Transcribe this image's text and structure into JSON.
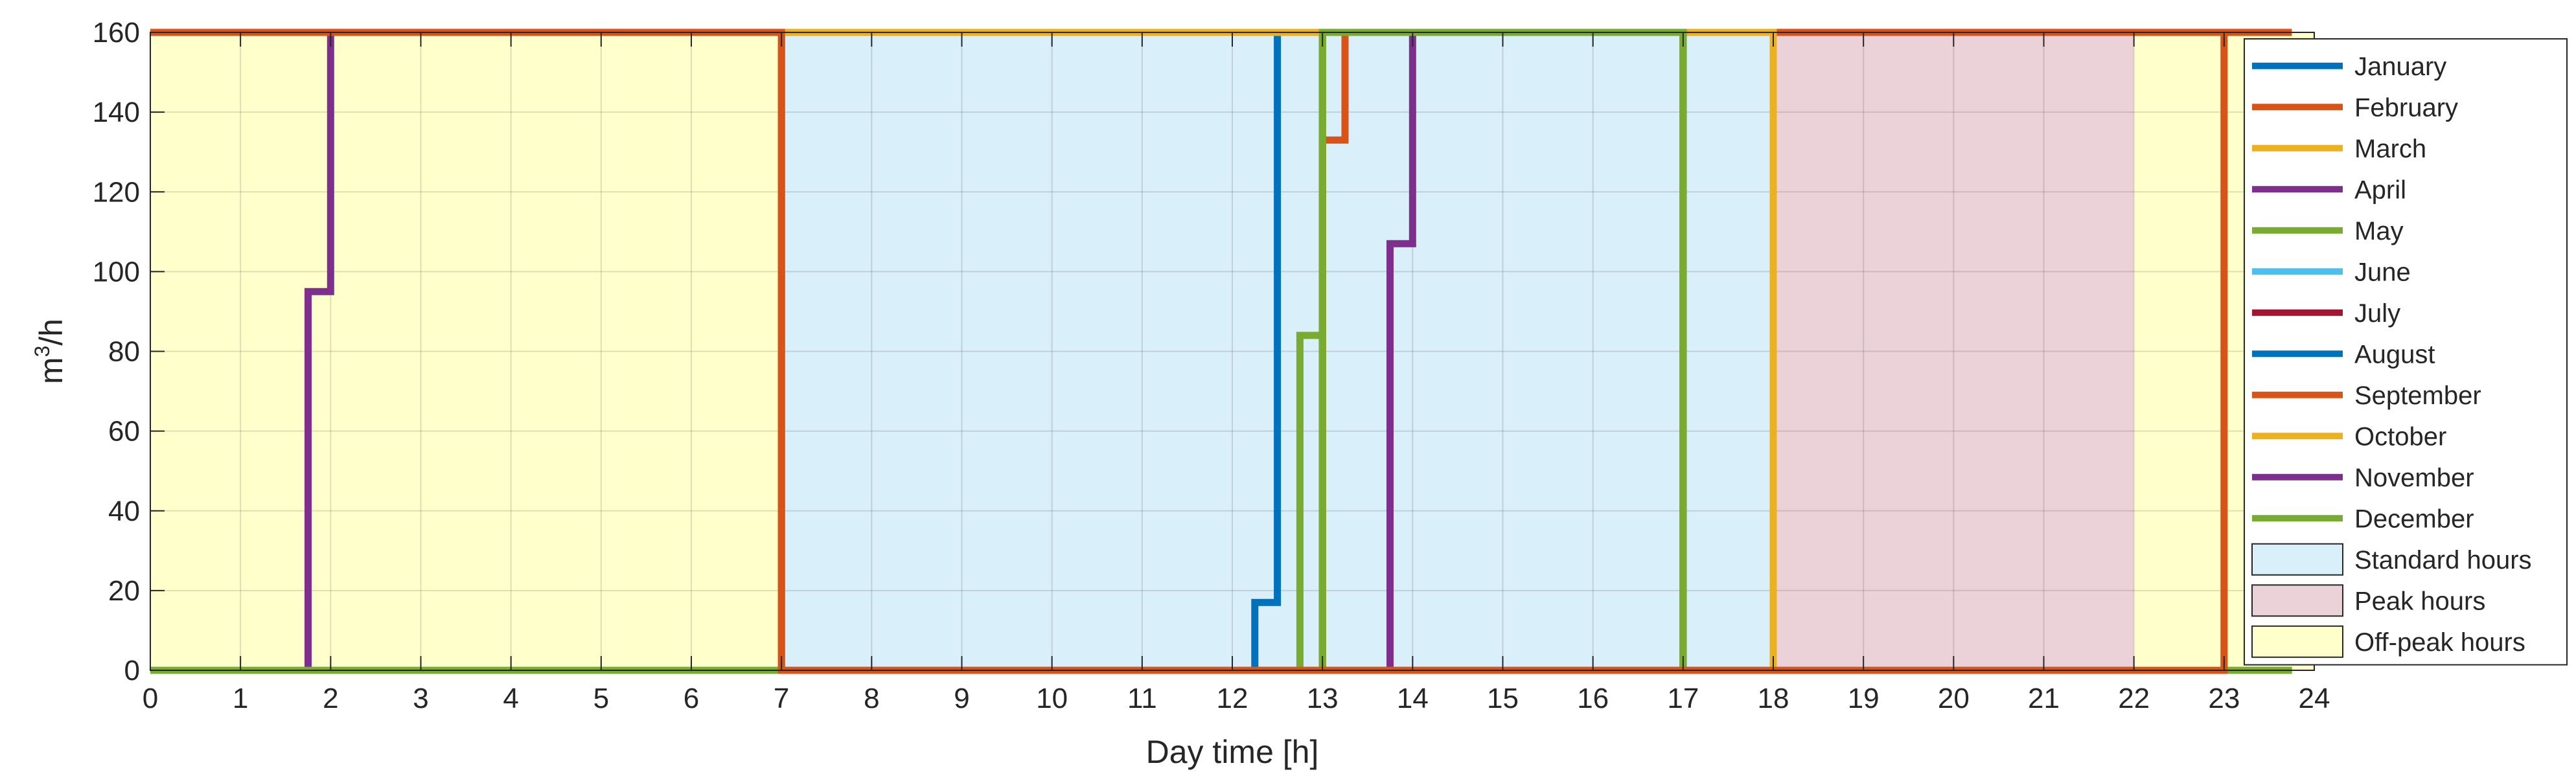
{
  "chart_data": {
    "type": "line",
    "step": true,
    "title": "",
    "xlabel": "Day time [h]",
    "ylabel_base": "m",
    "ylabel_sup": "3",
    "ylabel_tail": "/h",
    "xlim": [
      0,
      24
    ],
    "ylim": [
      0,
      160
    ],
    "xticks": [
      0,
      1,
      2,
      3,
      4,
      5,
      6,
      7,
      8,
      9,
      10,
      11,
      12,
      13,
      14,
      15,
      16,
      17,
      18,
      19,
      20,
      21,
      22,
      23,
      24
    ],
    "yticks": [
      0,
      20,
      40,
      60,
      80,
      100,
      120,
      140,
      160
    ],
    "grid": true,
    "legend_position": "right",
    "bands": [
      {
        "name": "Off-peak hours",
        "start": 0,
        "end": 7,
        "color": "#ffffcc"
      },
      {
        "name": "Standard hours",
        "start": 7,
        "end": 18,
        "color": "#d9eff9"
      },
      {
        "name": "Peak hours",
        "start": 18,
        "end": 22,
        "color": "#ebd2d8"
      },
      {
        "name": "Off-peak hours",
        "start": 22,
        "end": 24,
        "color": "#ffffcc"
      }
    ],
    "band_legend": [
      {
        "name": "Standard hours",
        "color": "#d9eff9"
      },
      {
        "name": "Peak hours",
        "color": "#ebd2d8"
      },
      {
        "name": "Off-peak hours",
        "color": "#ffffcc"
      }
    ],
    "series": [
      {
        "name": "January",
        "color": "#0072bd",
        "points": [
          [
            0,
            0
          ],
          [
            12.25,
            0
          ],
          [
            12.25,
            17
          ],
          [
            12.5,
            17
          ],
          [
            12.5,
            160
          ],
          [
            13,
            160
          ],
          [
            13,
            0
          ],
          [
            23.75,
            0
          ]
        ]
      },
      {
        "name": "February",
        "color": "#d95319",
        "points": [
          [
            0,
            0
          ],
          [
            13,
            0
          ],
          [
            13,
            160
          ],
          [
            23.75,
            160
          ]
        ]
      },
      {
        "name": "March",
        "color": "#edb120",
        "points": [
          [
            0,
            0
          ],
          [
            13,
            0
          ],
          [
            13,
            160
          ],
          [
            18,
            160
          ],
          [
            18,
            0
          ],
          [
            23.75,
            0
          ]
        ]
      },
      {
        "name": "April",
        "color": "#7e2f8e",
        "points": [
          [
            0,
            0
          ],
          [
            1.75,
            0
          ],
          [
            1.75,
            95
          ],
          [
            2,
            95
          ],
          [
            2,
            160
          ],
          [
            7,
            160
          ],
          [
            7,
            0
          ],
          [
            23.75,
            0
          ]
        ]
      },
      {
        "name": "May",
        "color": "#77ac30",
        "points": [
          [
            0,
            0
          ],
          [
            12.75,
            0
          ],
          [
            12.75,
            84
          ],
          [
            13,
            84
          ],
          [
            13,
            160
          ],
          [
            17,
            160
          ],
          [
            17,
            0
          ],
          [
            23.75,
            0
          ]
        ]
      },
      {
        "name": "June",
        "color": "#4dbeee",
        "points": [
          [
            0,
            0
          ],
          [
            23.75,
            0
          ]
        ]
      },
      {
        "name": "July",
        "color": "#a2142f",
        "points": [
          [
            0,
            0
          ],
          [
            23.75,
            0
          ]
        ]
      },
      {
        "name": "August",
        "color": "#0072bd",
        "points": [
          [
            0,
            0
          ],
          [
            23.75,
            0
          ]
        ]
      },
      {
        "name": "September",
        "color": "#d95319",
        "points": [
          [
            0,
            0
          ],
          [
            13,
            0
          ],
          [
            13,
            133
          ],
          [
            13.25,
            133
          ],
          [
            13.25,
            160
          ],
          [
            18,
            160
          ],
          [
            18,
            0
          ],
          [
            23.75,
            0
          ]
        ]
      },
      {
        "name": "October",
        "color": "#edb120",
        "points": [
          [
            0,
            160
          ],
          [
            7,
            160
          ],
          [
            7,
            0
          ],
          [
            7,
            160
          ],
          [
            18,
            160
          ],
          [
            18,
            0
          ],
          [
            23,
            0
          ],
          [
            23,
            160
          ],
          [
            23.75,
            160
          ]
        ]
      },
      {
        "name": "November",
        "color": "#7e2f8e",
        "points": [
          [
            0,
            0
          ],
          [
            12.75,
            0
          ],
          [
            13.75,
            0
          ],
          [
            13.75,
            107
          ],
          [
            14,
            107
          ],
          [
            14,
            160
          ],
          [
            17,
            160
          ],
          [
            17,
            0
          ],
          [
            23.75,
            0
          ]
        ]
      },
      {
        "name": "December",
        "color": "#77ac30",
        "points": [
          [
            0,
            0
          ],
          [
            12.75,
            0
          ],
          [
            12.75,
            0
          ],
          [
            13,
            0
          ],
          [
            13,
            160
          ],
          [
            17,
            160
          ],
          [
            17,
            0
          ],
          [
            23.75,
            0
          ]
        ]
      }
    ],
    "overlay_series": [
      {
        "name": "February",
        "color": "#d95319",
        "points": [
          [
            0,
            160
          ],
          [
            7,
            160
          ],
          [
            7,
            0
          ],
          [
            23,
            0
          ],
          [
            23,
            160
          ],
          [
            23.75,
            160
          ]
        ]
      }
    ]
  }
}
